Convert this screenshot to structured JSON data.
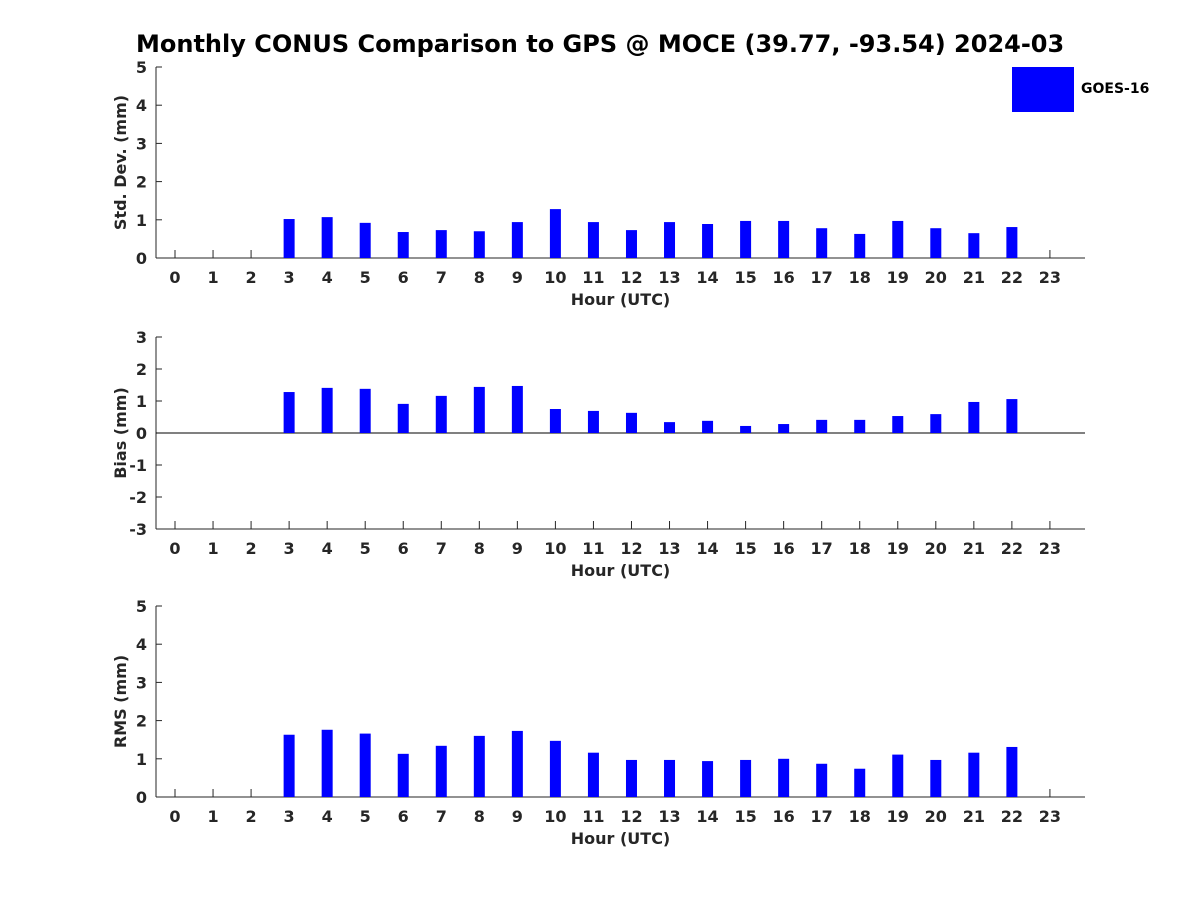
{
  "title": "Monthly CONUS Comparison to GPS @ MOCE (39.77, -93.54) 2024-03",
  "legend": {
    "label": "GOES-16",
    "color": "#0000ff"
  },
  "chart_data": [
    {
      "type": "bar",
      "xlabel": "Hour (UTC)",
      "ylabel": "Std. Dev. (mm)",
      "ylim": [
        0,
        5
      ],
      "yticks": [
        0,
        1,
        2,
        3,
        4,
        5
      ],
      "categories": [
        0,
        1,
        2,
        3,
        4,
        5,
        6,
        7,
        8,
        9,
        10,
        11,
        12,
        13,
        14,
        15,
        16,
        17,
        18,
        19,
        20,
        21,
        22,
        23
      ],
      "series": [
        {
          "name": "GOES-16",
          "values": [
            null,
            null,
            null,
            1.02,
            1.07,
            0.92,
            0.68,
            0.73,
            0.7,
            0.94,
            1.28,
            0.94,
            0.73,
            0.94,
            0.89,
            0.97,
            0.97,
            0.78,
            0.63,
            0.97,
            0.78,
            0.65,
            0.81,
            null
          ]
        }
      ]
    },
    {
      "type": "bar",
      "xlabel": "Hour (UTC)",
      "ylabel": "Bias (mm)",
      "ylim": [
        -3,
        3
      ],
      "yticks": [
        -3,
        -2,
        -1,
        0,
        1,
        2,
        3
      ],
      "categories": [
        0,
        1,
        2,
        3,
        4,
        5,
        6,
        7,
        8,
        9,
        10,
        11,
        12,
        13,
        14,
        15,
        16,
        17,
        18,
        19,
        20,
        21,
        22,
        23
      ],
      "series": [
        {
          "name": "GOES-16",
          "values": [
            null,
            null,
            null,
            1.28,
            1.41,
            1.38,
            0.91,
            1.16,
            1.44,
            1.47,
            0.75,
            0.69,
            0.63,
            0.34,
            0.38,
            0.22,
            0.28,
            0.41,
            0.41,
            0.53,
            0.59,
            0.97,
            1.06,
            null
          ]
        }
      ]
    },
    {
      "type": "bar",
      "xlabel": "Hour (UTC)",
      "ylabel": "RMS (mm)",
      "ylim": [
        0,
        5
      ],
      "yticks": [
        0,
        1,
        2,
        3,
        4,
        5
      ],
      "categories": [
        0,
        1,
        2,
        3,
        4,
        5,
        6,
        7,
        8,
        9,
        10,
        11,
        12,
        13,
        14,
        15,
        16,
        17,
        18,
        19,
        20,
        21,
        22,
        23
      ],
      "series": [
        {
          "name": "GOES-16",
          "values": [
            null,
            null,
            null,
            1.63,
            1.76,
            1.66,
            1.13,
            1.34,
            1.6,
            1.73,
            1.47,
            1.16,
            0.97,
            0.97,
            0.94,
            0.97,
            1.0,
            0.87,
            0.74,
            1.11,
            0.97,
            1.16,
            1.31,
            null
          ]
        }
      ]
    }
  ]
}
